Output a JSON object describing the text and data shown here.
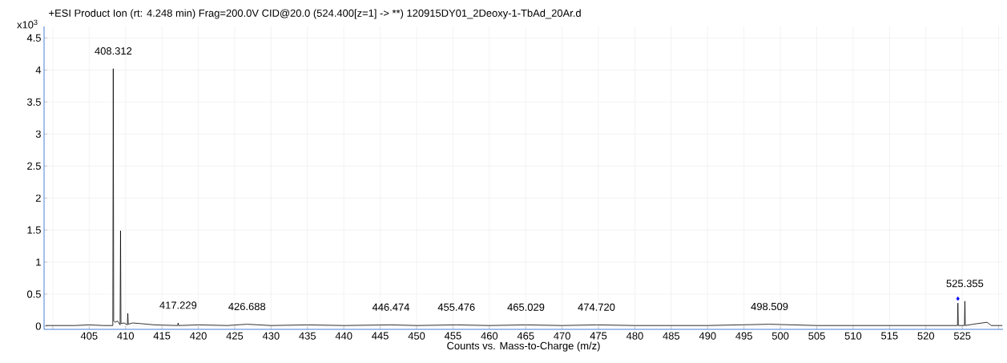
{
  "chart_data": {
    "type": "line",
    "title": "+ESI Product Ion (rt: 4.248 min) Frag=200.0V CID@20.0 (524.400[z=1] -> **) 120915DY01_2Deoxy-1-TbAd_20Ar.d",
    "xlabel": "Counts vs. Mass-to-Charge (m/z)",
    "ylabel": "x10$^{3}$",
    "xlim": [
      398.8,
      530.6
    ],
    "ylim": [
      -0.05,
      4.68
    ],
    "xticks": [
      {
        "value": 400,
        "label": null
      },
      405,
      410,
      415,
      420,
      425,
      430,
      435,
      440,
      445,
      450,
      455,
      460,
      465,
      470,
      475,
      480,
      485,
      490,
      495,
      500,
      505,
      510,
      515,
      520,
      525,
      {
        "value": 530,
        "label": null
      }
    ],
    "yticks": [
      0,
      0.5,
      1,
      1.5,
      2,
      2.5,
      3,
      3.5,
      4,
      4.5
    ],
    "grid": true,
    "line_style": "solid",
    "series": [
      {
        "color": "#000000",
        "marker": "none",
        "x": [
          399.0,
          400,
          403,
          405,
          407,
          408.25,
          408.31,
          408.37,
          408.6,
          408.9,
          409.25,
          409.31,
          409.37,
          409.8,
          410.25,
          410.31,
          410.37,
          411,
          412,
          414,
          417.17,
          417.23,
          417.29,
          420,
          424,
          426.69,
          430,
          435,
          440,
          446.47,
          450,
          455.48,
          460,
          465.03,
          470,
          474.72,
          480,
          490,
          498.51,
          505,
          515,
          524.34,
          524.4,
          524.46,
          525.3,
          525.36,
          525.42,
          526.5,
          528.4,
          529,
          530.5
        ],
        "values": [
          0.01,
          0.01,
          0.01,
          0.02,
          0.01,
          0.01,
          4.02,
          0.08,
          0.06,
          0.08,
          0.02,
          1.49,
          0.04,
          0.05,
          0.02,
          0.2,
          0.03,
          0.05,
          0.04,
          0.02,
          0.01,
          0.05,
          0.01,
          0.02,
          0.01,
          0.03,
          0.01,
          0.02,
          0.01,
          0.02,
          0.01,
          0.02,
          0.01,
          0.02,
          0.01,
          0.02,
          0.01,
          0.01,
          0.03,
          0.01,
          0.01,
          0.01,
          0.36,
          0.01,
          0.01,
          0.39,
          0.01,
          0.03,
          0.06,
          0.01,
          0.01
        ]
      },
      {
        "type": "scatter",
        "color": "#0000ff",
        "marker": "diamond",
        "x": [
          524.4
        ],
        "values": [
          0.43
        ]
      }
    ],
    "annotations": [
      {
        "text": "408.312",
        "x": 408.312,
        "y": 4.02
      },
      {
        "text": "417.229",
        "x": 417.229,
        "y": 0.05
      },
      {
        "text": "426.688",
        "x": 426.688,
        "y": 0.03
      },
      {
        "text": "446.474",
        "x": 446.474,
        "y": 0.02
      },
      {
        "text": "455.476",
        "x": 455.476,
        "y": 0.02
      },
      {
        "text": "465.029",
        "x": 465.029,
        "y": 0.02
      },
      {
        "text": "474.720",
        "x": 474.72,
        "y": 0.02
      },
      {
        "text": "498.509",
        "x": 498.509,
        "y": 0.03
      },
      {
        "text": "525.355",
        "x": 525.355,
        "y": 0.39
      }
    ]
  }
}
